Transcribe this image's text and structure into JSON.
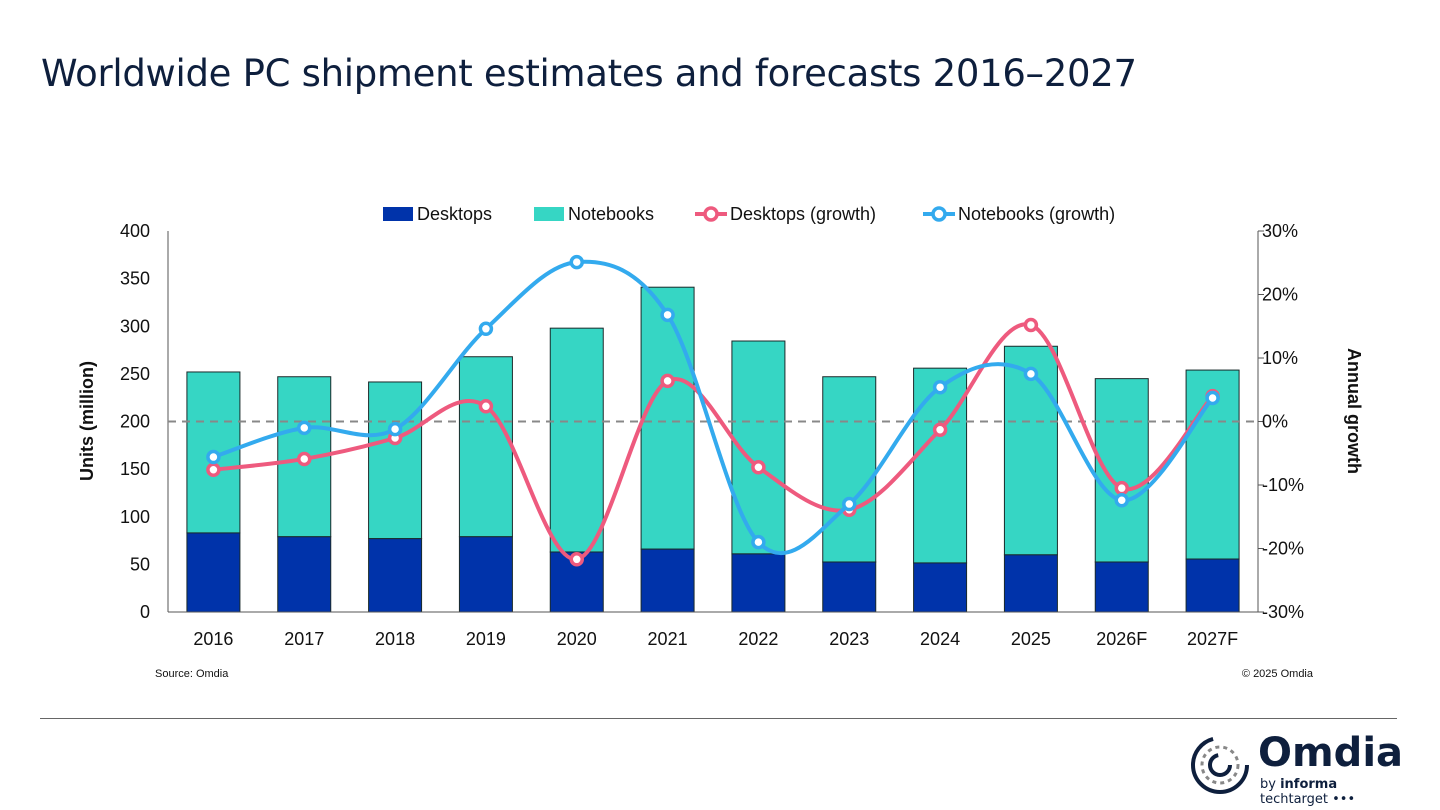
{
  "title": "Worldwide PC shipment estimates and forecasts 2016–2027",
  "chart_data": {
    "type": "bar",
    "stacked": true,
    "categories": [
      "2016",
      "2017",
      "2018",
      "2019",
      "2020",
      "2021",
      "2022",
      "2023",
      "2024",
      "2025",
      "2026F",
      "2027F"
    ],
    "series": [
      {
        "name": "Desktops",
        "type": "bar",
        "axis": "left",
        "color": "#0033aa",
        "values": [
          83,
          79,
          77,
          79,
          63,
          66,
          61,
          52.5,
          51.5,
          60,
          52.5,
          55.6
        ]
      },
      {
        "name": "Notebooks",
        "type": "bar",
        "axis": "left",
        "color": "#36d6c4",
        "values": [
          169,
          168,
          164.5,
          189,
          235,
          275,
          223.5,
          194.5,
          204.5,
          219,
          192.5,
          198.4
        ]
      },
      {
        "name": "Desktops (growth)",
        "type": "line",
        "axis": "right",
        "color": "#ee5a7e",
        "values": [
          -7.6,
          -5.9,
          -2.6,
          2.4,
          -21.7,
          6.4,
          -7.2,
          -13.9,
          -1.3,
          15.2,
          -10.5,
          4.0
        ]
      },
      {
        "name": "Notebooks (growth)",
        "type": "line",
        "axis": "right",
        "color": "#33aaee",
        "values": [
          -5.6,
          -1.0,
          -1.2,
          14.6,
          25.1,
          16.8,
          -19.0,
          -13.0,
          5.4,
          7.5,
          -12.4,
          3.7
        ]
      }
    ],
    "ylabel": "Units (million)",
    "ylim": [
      0,
      400
    ],
    "yticks": [
      "0",
      "50",
      "100",
      "150",
      "200",
      "250",
      "300",
      "350",
      "400"
    ],
    "y2label": "Annual growth",
    "y2lim": [
      -30,
      30
    ],
    "y2ticks": [
      "-30%",
      "-20%",
      "-10%",
      "0%",
      "10%",
      "20%",
      "30%"
    ],
    "legend": "top",
    "grid": false,
    "zero_line": "dashed"
  },
  "source": "Source: Omdia",
  "copyright": "© 2025 Omdia",
  "logo": {
    "name": "Omdia",
    "by": "by",
    "informa": "informa",
    "techtarget": "techtarget •••"
  }
}
